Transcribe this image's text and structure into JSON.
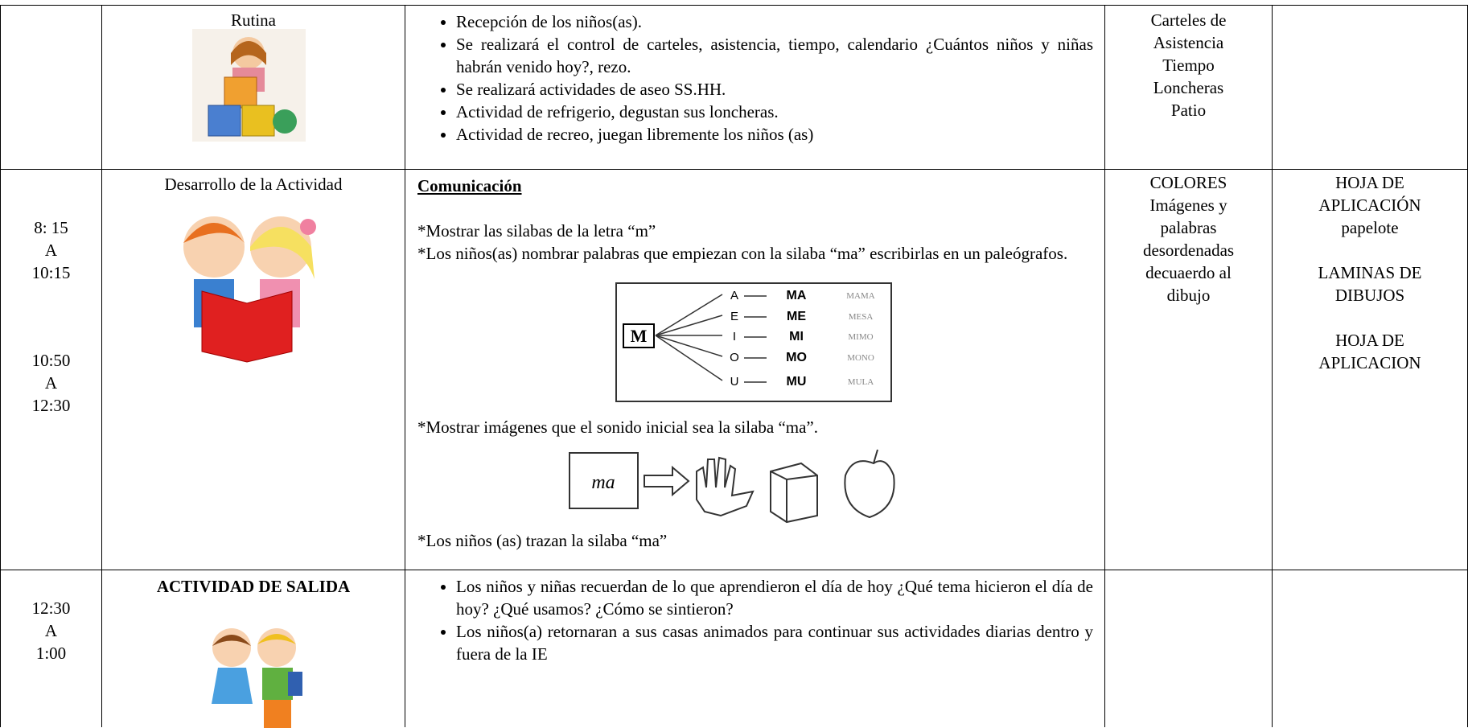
{
  "table": {
    "rows": [
      {
        "moment": "Rutina",
        "bullets": [
          "Recepción de los niños(as).",
          "Se realizará el control de carteles, asistencia, tiempo, calendario ¿Cuántos niños y niñas habrán venido hoy?, rezo.",
          "Se realizará actividades de aseo SS.HH.",
          "Actividad de refrigerio, degustan sus loncheras.",
          "Actividad de recreo, juegan libremente los niños (as)"
        ],
        "materials": [
          "Carteles de",
          "Asistencia",
          "Tiempo",
          "Loncheras",
          "Patio"
        ]
      },
      {
        "time": [
          [
            "8: 15",
            "A",
            "10:15"
          ],
          [
            "10:50",
            "A",
            "12:30"
          ]
        ],
        "moment": "Desarrollo de la Actividad",
        "heading": "Comunicación",
        "paragraphs": [
          "*Mostrar las silabas de la letra “m”",
          "*Los niños(as) nombrar palabras que empiezan con la silaba “ma” escribirlas en un paleógrafos.",
          "*Mostrar imágenes que el sonido inicial sea la silaba “ma”.",
          "*Los niños (as) trazan la silaba “ma”"
        ],
        "diagram": {
          "center": "M",
          "rows": [
            [
              "A",
              "MA",
              "MAMA"
            ],
            [
              "E",
              "ME",
              "MESA"
            ],
            [
              "I",
              "MI",
              "MIMO"
            ],
            [
              "O",
              "MO",
              "MONO"
            ],
            [
              "U",
              "MU",
              "MULA"
            ]
          ]
        },
        "picture_label": "ma",
        "materials": [
          "COLORES",
          "Imágenes  y",
          "palabras",
          "desordenadas",
          "decuaerdo al",
          "dibujo"
        ],
        "evaluation": [
          [
            "HOJA DE",
            "APLICACIÓN",
            "papelote"
          ],
          [
            "LAMINAS  DE",
            "DIBUJOS"
          ],
          [
            "HOJA DE",
            "APLICACION"
          ]
        ]
      },
      {
        "time": [
          [
            "12:30",
            "A",
            "1:00"
          ]
        ],
        "moment": "ACTIVIDAD DE SALIDA",
        "bullets": [
          "Los niños y niñas recuerdan de lo que aprendieron el día de hoy ¿Qué tema hicieron el día de hoy? ¿Qué usamos? ¿Cómo se sintieron?",
          "Los niños(a) retornaran a sus casas animados para continuar sus actividades diarias dentro y fuera de la IE"
        ]
      }
    ]
  }
}
